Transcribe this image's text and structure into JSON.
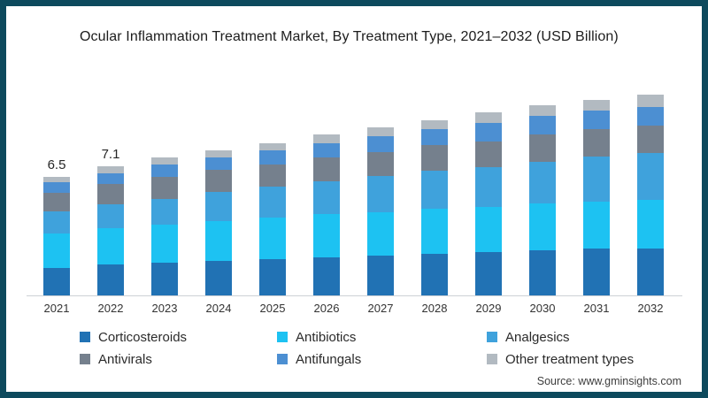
{
  "title": "Ocular Inflammation Treatment Market, By Treatment Type, 2021–2032 (USD Billion)",
  "source": "Source: www.gminsights.com",
  "frame_color": "#0d4a5d",
  "chart_data": {
    "type": "bar",
    "stacked": true,
    "title": "Ocular Inflammation Treatment Market, By Treatment Type, 2021–2032 (USD Billion)",
    "xlabel": "",
    "ylabel": "USD Billion",
    "grid": false,
    "legend_position": "bottom",
    "categories": [
      "2021",
      "2022",
      "2023",
      "2024",
      "2025",
      "2026",
      "2027",
      "2028",
      "2029",
      "2030",
      "2031",
      "2032"
    ],
    "series": [
      {
        "name": "Corticosteroids",
        "color": "#2172b4",
        "values": [
          1.5,
          1.7,
          1.8,
          1.9,
          2.0,
          2.1,
          2.2,
          2.3,
          2.4,
          2.5,
          2.6,
          2.6
        ]
      },
      {
        "name": "Antibiotics",
        "color": "#1dc2f2",
        "values": [
          1.9,
          2.0,
          2.1,
          2.2,
          2.3,
          2.4,
          2.4,
          2.5,
          2.5,
          2.6,
          2.6,
          2.7
        ]
      },
      {
        "name": "Analgesics",
        "color": "#3fa2dc",
        "values": [
          1.2,
          1.3,
          1.4,
          1.6,
          1.7,
          1.8,
          2.0,
          2.1,
          2.2,
          2.3,
          2.5,
          2.6
        ]
      },
      {
        "name": "Antivirals",
        "color": "#75808d",
        "values": [
          1.0,
          1.1,
          1.2,
          1.2,
          1.2,
          1.3,
          1.3,
          1.4,
          1.4,
          1.5,
          1.5,
          1.5
        ]
      },
      {
        "name": "Antifungals",
        "color": "#4c8fd2",
        "values": [
          0.6,
          0.6,
          0.7,
          0.7,
          0.8,
          0.8,
          0.9,
          0.9,
          1.0,
          1.0,
          1.0,
          1.0
        ]
      },
      {
        "name": "Other treatment types",
        "color": "#b2bac1",
        "values": [
          0.3,
          0.4,
          0.4,
          0.4,
          0.4,
          0.5,
          0.5,
          0.5,
          0.6,
          0.6,
          0.6,
          0.7
        ]
      }
    ],
    "totals": [
      6.5,
      7.1,
      7.6,
      8.0,
      8.4,
      8.9,
      9.3,
      9.7,
      10.1,
      10.5,
      10.8,
      11.1
    ],
    "bar_value_labels": {
      "2021": "6.5",
      "2022": "7.1"
    },
    "ylim": [
      0,
      12
    ]
  }
}
